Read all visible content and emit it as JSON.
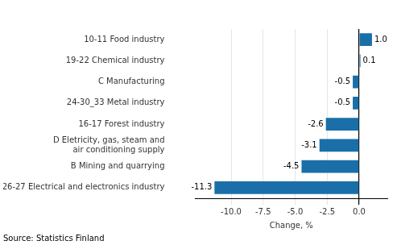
{
  "chart_data": {
    "type": "bar",
    "orientation": "horizontal",
    "categories": [
      "26-27 Electrical and electronics industry",
      "B Mining and quarrying",
      "D Eletricity, gas, steam and\nair conditioning supply",
      "16-17 Forest industry",
      "24-30_33 Metal industry",
      "C Manufacturing",
      "19-22 Chemical industry",
      "10-11 Food industry"
    ],
    "values": [
      -11.3,
      -4.5,
      -3.1,
      -2.6,
      -0.5,
      -0.5,
      0.1,
      1.0
    ],
    "value_labels": [
      "-11.3",
      "-4.5",
      "-3.1",
      "-2.6",
      "-0.5",
      "-0.5",
      "0.1",
      "1.0"
    ],
    "data_labels": true,
    "color": "#1a6fa8",
    "xlabel": "Change, %",
    "annotation": "Source: Statistics Finland",
    "xlim": [
      -12.8,
      2.2
    ],
    "xticks": [
      {
        "value": -10.0,
        "label": "-10.0"
      },
      -7.5,
      {
        "value": -5.0,
        "label": "-5.0"
      },
      -2.5,
      {
        "value": 0.0,
        "label": "0.0"
      }
    ],
    "grid": true
  }
}
